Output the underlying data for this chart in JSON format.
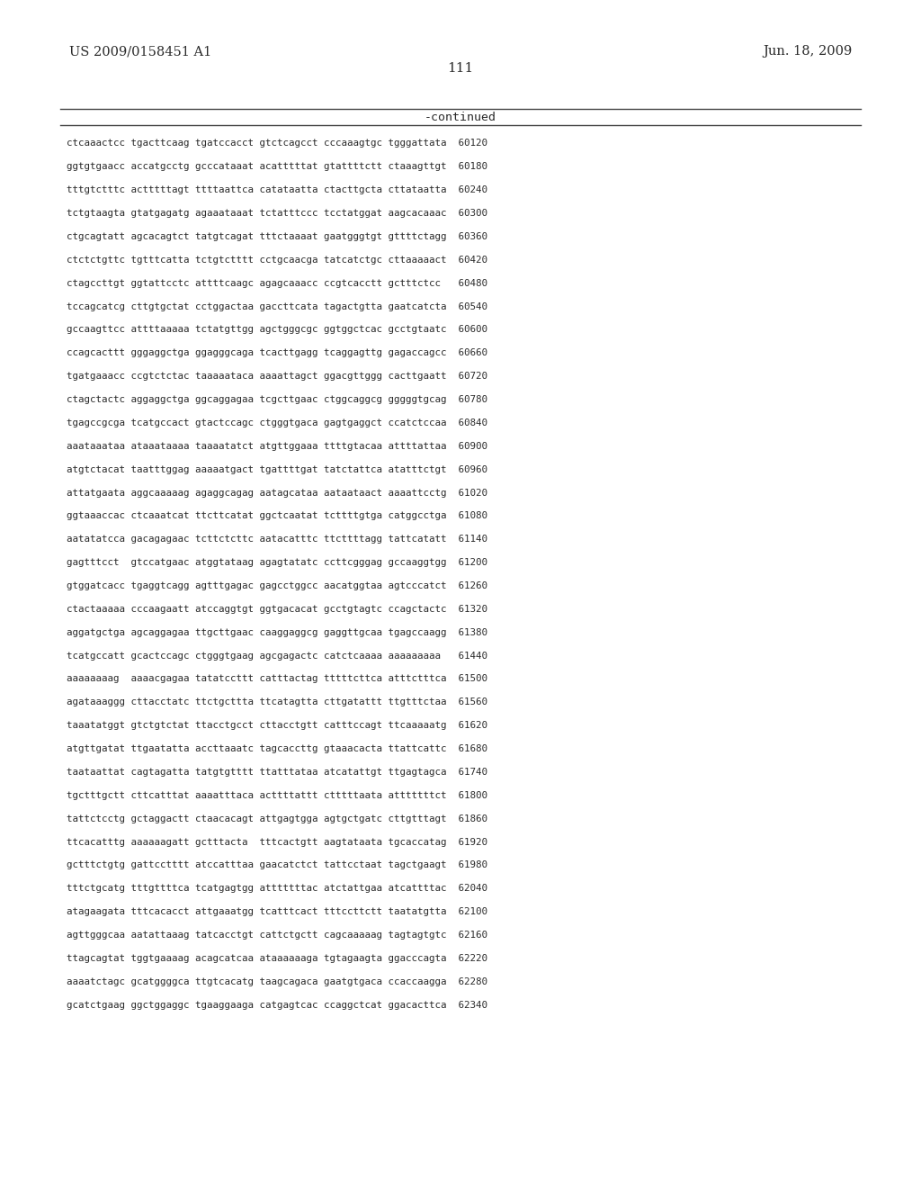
{
  "header_left": "US 2009/0158451 A1",
  "header_right": "Jun. 18, 2009",
  "page_number": "111",
  "continued_label": "-continued",
  "bg_color": "#ffffff",
  "text_color": "#2a2a2a",
  "lines": [
    "ctcaaactcc tgacttcaag tgatccacct gtctcagcct cccaaagtgc tgggattata  60120",
    "ggtgtgaacc accatgcctg gcccataaat acatttttat gtattttctt ctaaagttgt  60180",
    "tttgtctttc actttttagt ttttaattca catataatta ctacttgcta cttataatta  60240",
    "tctgtaagta gtatgagatg agaaataaat tctatttccc tcctatggat aagcacaaac  60300",
    "ctgcagtatt agcacagtct tatgtcagat tttctaaaat gaatgggtgt gttttctagg  60360",
    "ctctctgttc tgtttcatta tctgtctttt cctgcaacga tatcatctgc cttaaaaact  60420",
    "ctagccttgt ggtattcctc attttcaagc agagcaaacc ccgtcacctt gctttctcc   60480",
    "tccagcatcg cttgtgctat cctggactaa gaccttcata tagactgtta gaatcatcta  60540",
    "gccaagttcc attttaaaaa tctatgttgg agctgggcgc ggtggctcac gcctgtaatc  60600",
    "ccagcacttt gggaggctga ggagggcaga tcacttgagg tcaggagttg gagaccagcc  60660",
    "tgatgaaacc ccgtctctac taaaaataca aaaattagct ggacgttggg cacttgaatt  60720",
    "ctagctactc aggaggctga ggcaggagaa tcgcttgaac ctggcaggcg gggggtgcag  60780",
    "tgagccgcga tcatgccact gtactccagc ctgggtgaca gagtgaggct ccatctccaa  60840",
    "aaataaataa ataaataaaa taaaatatct atgttggaaa ttttgtacaa attttattaa  60900",
    "atgtctacat taatttggag aaaaatgact tgattttgat tatctattca atatttctgt  60960",
    "attatgaata aggcaaaaag agaggcagag aatagcataa aataataact aaaattcctg  61020",
    "ggtaaaccac ctcaaatcat ttcttcatat ggctcaatat tcttttgtga catggcctga  61080",
    "aatatatcca gacagagaac tcttctcttc aatacatttc ttcttttagg tattcatatt  61140",
    "gagtttcct  gtccatgaac atggtataag agagtatatc ccttcgggag gccaaggtgg  61200",
    "gtggatcacc tgaggtcagg agtttgagac gagcctggcc aacatggtaa agtcccatct  61260",
    "ctactaaaaa cccaagaatt atccaggtgt ggtgacacat gcctgtagtc ccagctactc  61320",
    "aggatgctga agcaggagaa ttgcttgaac caaggaggcg gaggttgcaa tgagccaagg  61380",
    "tcatgccatt gcactccagc ctgggtgaag agcgagactc catctcaaaa aaaaaaaaa   61440",
    "aaaaaaaag  aaaacgagaa tatatccttt catttactag tttttcttca atttctttca  61500",
    "agataaaggg cttacctatc ttctgcttta ttcatagtta cttgatattt ttgtttctaa  61560",
    "taaatatggt gtctgtctat ttacctgcct cttacctgtt catttccagt ttcaaaaatg  61620",
    "atgttgatat ttgaatatta accttaaatc tagcaccttg gtaaacacta ttattcattc  61680",
    "taataattat cagtagatta tatgtgtttt ttatttataa atcatattgt ttgagtagca  61740",
    "tgctttgctt cttcatttat aaaatttaca acttttattt ctttttaata atttttttct  61800",
    "tattctcctg gctaggactt ctaacacagt attgagtgga agtgctgatc cttgtttagt  61860",
    "ttcacatttg aaaaaagatt gctttacta  tttcactgtt aagtataata tgcaccatag  61920",
    "gctttctgtg gattcctttt atccatttaa gaacatctct tattcctaat tagctgaagt  61980",
    "tttctgcatg tttgttttca tcatgagtgg atttttttac atctattgaa atcattttac  62040",
    "atagaagata tttcacacct attgaaatgg tcatttcact tttccttctt taatatgtta  62100",
    "agttgggcaa aatattaaag tatcacctgt cattctgctt cagcaaaaag tagtagtgtc  62160",
    "ttagcagtat tggtgaaaag acagcatcaa ataaaaaaga tgtagaagta ggacccagta  62220",
    "aaaatctagc gcatggggca ttgtcacatg taagcagaca gaatgtgaca ccaccaagga  62280",
    "gcatctgaag ggctggaggc tgaaggaaga catgagtcac ccaggctcat ggacacttca  62340"
  ]
}
